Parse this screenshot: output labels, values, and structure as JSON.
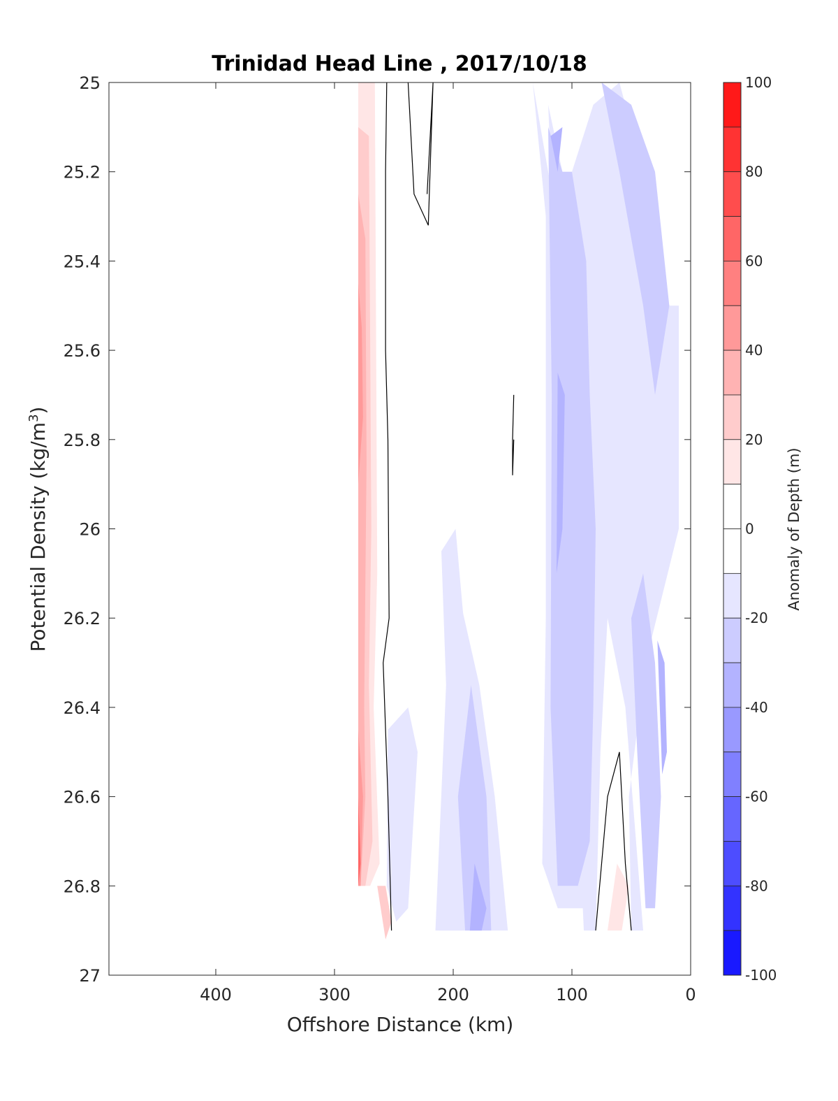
{
  "chart_data": {
    "type": "contourf",
    "title": "Trinidad Head Line , 2017/10/18",
    "xlabel": "Offshore Distance (km)",
    "ylabel": "Potential Density (kg/m",
    "ylabel_sup": "3",
    "ylabel_end": ")",
    "xlim": [
      490,
      0
    ],
    "ylim": [
      25,
      27
    ],
    "x_reversed": true,
    "y_reversed": true,
    "xticks": [
      400,
      300,
      200,
      100,
      0
    ],
    "yticks": [
      25,
      25.2,
      25.4,
      25.6,
      25.8,
      26,
      26.2,
      26.4,
      26.6,
      26.8,
      27
    ],
    "ytick_labels": [
      "25",
      "25.2",
      "25.4",
      "25.6",
      "25.8",
      "26",
      "26.2",
      "26.4",
      "26.6",
      "26.8",
      "27"
    ],
    "colorbar": {
      "label": "Anomaly of Depth (m)",
      "range": [
        -100,
        100
      ],
      "step": 10,
      "ticks": [
        100,
        80,
        60,
        40,
        20,
        0,
        -20,
        -40,
        -60,
        -80,
        -100
      ]
    },
    "regions": [
      {
        "level": 10,
        "points": [
          [
            280,
            25
          ],
          [
            266,
            25
          ],
          [
            264,
            26.1
          ],
          [
            267,
            26.4
          ],
          [
            262,
            26.75
          ],
          [
            270,
            26.8
          ],
          [
            280,
            26.8
          ]
        ]
      },
      {
        "level": 20,
        "points": [
          [
            280,
            25.1
          ],
          [
            271,
            25.12
          ],
          [
            269,
            26
          ],
          [
            271,
            26.35
          ],
          [
            268,
            26.7
          ],
          [
            274,
            26.8
          ],
          [
            280,
            26.8
          ]
        ]
      },
      {
        "level": 30,
        "points": [
          [
            280,
            25.25
          ],
          [
            274,
            25.35
          ],
          [
            273,
            25.85
          ],
          [
            275,
            26.4
          ],
          [
            274,
            26.6
          ],
          [
            278,
            26.8
          ],
          [
            280,
            26.8
          ]
        ]
      },
      {
        "level": 40,
        "points": [
          [
            280,
            25.45
          ],
          [
            277,
            25.55
          ],
          [
            276,
            25.75
          ],
          [
            280,
            25.9
          ]
        ]
      },
      {
        "level": 40,
        "points": [
          [
            280,
            26.45
          ],
          [
            276,
            26.6
          ],
          [
            278,
            26.8
          ],
          [
            280,
            26.8
          ]
        ]
      },
      {
        "level": 60,
        "points": [
          [
            280,
            26.6
          ],
          [
            278,
            26.75
          ],
          [
            280,
            26.8
          ]
        ]
      },
      {
        "level": 20,
        "points": [
          [
            264,
            26.8
          ],
          [
            257,
            26.8
          ],
          [
            252,
            26.88
          ],
          [
            257,
            26.92
          ]
        ]
      },
      {
        "level": -10,
        "points": [
          [
            133,
            25
          ],
          [
            122,
            25.3
          ],
          [
            122,
            26.2
          ],
          [
            125,
            26.75
          ],
          [
            112,
            26.85
          ],
          [
            85,
            26.85
          ],
          [
            82,
            26.2
          ],
          [
            88,
            25.7
          ],
          [
            120,
            25.2
          ]
        ]
      },
      {
        "level": -10,
        "points": [
          [
            120,
            25.05
          ],
          [
            108,
            25.2
          ],
          [
            100,
            25.2
          ],
          [
            82,
            25.05
          ],
          [
            60,
            25.0
          ],
          [
            50,
            25.1
          ],
          [
            25,
            25.4
          ],
          [
            18,
            25.5
          ],
          [
            10,
            25.5
          ],
          [
            10,
            26.0
          ],
          [
            38,
            26.3
          ],
          [
            52,
            26.6
          ],
          [
            50,
            26.9
          ],
          [
            40,
            26.9
          ],
          [
            55,
            26.4
          ],
          [
            70,
            26.2
          ],
          [
            76,
            26.5
          ],
          [
            80,
            26.9
          ],
          [
            90,
            26.9
          ],
          [
            95,
            26.6
          ]
        ]
      },
      {
        "level": -20,
        "points": [
          [
            120,
            25.1
          ],
          [
            108,
            25.2
          ],
          [
            100,
            25.2
          ],
          [
            88,
            25.4
          ],
          [
            85,
            25.7
          ],
          [
            80,
            26.0
          ],
          [
            82,
            26.4
          ],
          [
            85,
            26.7
          ],
          [
            95,
            26.8
          ],
          [
            112,
            26.8
          ],
          [
            118,
            26.4
          ],
          [
            117,
            25.7
          ]
        ]
      },
      {
        "level": -20,
        "points": [
          [
            75,
            25.0
          ],
          [
            60,
            25.2
          ],
          [
            40,
            25.5
          ],
          [
            30,
            25.7
          ],
          [
            24,
            25.6
          ],
          [
            18,
            25.5
          ],
          [
            30,
            25.2
          ],
          [
            50,
            25.05
          ]
        ]
      },
      {
        "level": -20,
        "points": [
          [
            40,
            26.1
          ],
          [
            30,
            26.3
          ],
          [
            25,
            26.6
          ],
          [
            30,
            26.85
          ],
          [
            38,
            26.85
          ],
          [
            45,
            26.5
          ],
          [
            50,
            26.2
          ]
        ]
      },
      {
        "level": -30,
        "points": [
          [
            118,
            25.12
          ],
          [
            112,
            25.2
          ],
          [
            108,
            25.1
          ]
        ]
      },
      {
        "level": -30,
        "points": [
          [
            112,
            25.65
          ],
          [
            106,
            25.7
          ],
          [
            108,
            26.0
          ],
          [
            113,
            26.1
          ]
        ]
      },
      {
        "level": -30,
        "points": [
          [
            28,
            26.25
          ],
          [
            22,
            26.3
          ],
          [
            20,
            26.5
          ],
          [
            24,
            26.55
          ]
        ]
      },
      {
        "level": -10,
        "points": [
          [
            255,
            26.45
          ],
          [
            238,
            26.4
          ],
          [
            230,
            26.5
          ],
          [
            238,
            26.85
          ],
          [
            248,
            26.88
          ],
          [
            256,
            26.8
          ]
        ]
      },
      {
        "level": -10,
        "points": [
          [
            198,
            26.0
          ],
          [
            188,
            26.3
          ],
          [
            190,
            26.4
          ],
          [
            193,
            26.9
          ],
          [
            215,
            26.9
          ],
          [
            206,
            26.35
          ],
          [
            210,
            26.05
          ]
        ]
      },
      {
        "level": -10,
        "points": [
          [
            195,
            26.15
          ],
          [
            178,
            26.35
          ],
          [
            165,
            26.6
          ],
          [
            154,
            26.9
          ],
          [
            212,
            26.9
          ],
          [
            200,
            26.5
          ]
        ]
      },
      {
        "level": -20,
        "points": [
          [
            185,
            26.35
          ],
          [
            172,
            26.6
          ],
          [
            168,
            26.9
          ],
          [
            190,
            26.9
          ],
          [
            196,
            26.6
          ]
        ]
      },
      {
        "level": -30,
        "points": [
          [
            182,
            26.75
          ],
          [
            172,
            26.85
          ],
          [
            176,
            26.9
          ],
          [
            186,
            26.9
          ]
        ]
      },
      {
        "level": 10,
        "points": [
          [
            70,
            26.9
          ],
          [
            62,
            26.75
          ],
          [
            52,
            26.8
          ],
          [
            58,
            26.9
          ]
        ]
      }
    ],
    "zero_contours": [
      [
        [
          256,
          25
        ],
        [
          257,
          25.2
        ],
        [
          257,
          25.6
        ],
        [
          255,
          25.8
        ],
        [
          254,
          26.2
        ],
        [
          259,
          26.3
        ],
        [
          255,
          26.6
        ],
        [
          252,
          26.9
        ]
      ],
      [
        [
          238,
          25
        ],
        [
          233,
          25.25
        ],
        [
          221,
          25.32
        ],
        [
          217,
          25
        ],
        [
          222,
          25.25
        ]
      ],
      [
        [
          149,
          25.7
        ],
        [
          150,
          25.8
        ],
        [
          150,
          25.88
        ],
        [
          149,
          25.8
        ]
      ],
      [
        [
          80,
          26.9
        ],
        [
          70,
          26.6
        ],
        [
          60,
          26.5
        ],
        [
          55,
          26.75
        ],
        [
          50,
          26.9
        ]
      ]
    ]
  }
}
